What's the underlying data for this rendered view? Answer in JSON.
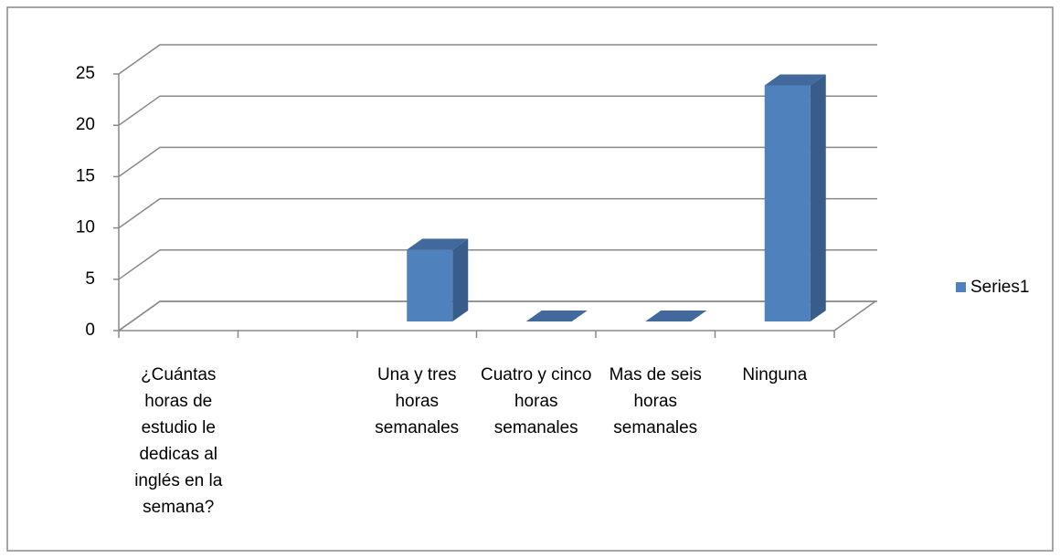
{
  "chart_data": {
    "type": "bar3d",
    "categories": [
      "¿Cuántas horas de estudio le dedicas al inglés en la semana?",
      null,
      "Una y tres horas semanales",
      "Cuatro y cinco horas semanales",
      "Mas de seis horas semanales",
      "Ninguna"
    ],
    "series": [
      {
        "name": "Series1",
        "color": "#4f81bd",
        "values": [
          null,
          null,
          7,
          0,
          0,
          23
        ]
      }
    ],
    "ylim": [
      0,
      25
    ],
    "yticks": [
      0,
      5,
      10,
      15,
      20,
      25
    ],
    "grid": true,
    "legend": "right"
  }
}
